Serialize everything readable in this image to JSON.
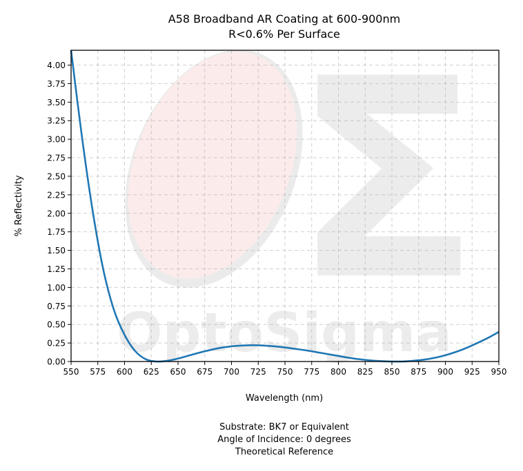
{
  "chart_data": {
    "type": "line",
    "title": "A58 Broadband AR Coating at 600-900nm",
    "subtitle": "R<0.6% Per Surface",
    "xlabel": "Wavelength (nm)",
    "ylabel": "% Reflectivity",
    "xlim": [
      550,
      950
    ],
    "ylim": [
      0,
      4.2
    ],
    "xticks": [
      550,
      575,
      600,
      625,
      650,
      675,
      700,
      725,
      750,
      775,
      800,
      825,
      850,
      875,
      900,
      925,
      950
    ],
    "yticks": [
      0.0,
      0.25,
      0.5,
      0.75,
      1.0,
      1.25,
      1.5,
      1.75,
      2.0,
      2.25,
      2.5,
      2.75,
      3.0,
      3.25,
      3.5,
      3.75,
      4.0
    ],
    "grid": true,
    "series": [
      {
        "color": "#1f77b4",
        "x": [
          550,
          560,
          570,
          580,
          590,
          600,
          610,
          620,
          630,
          640,
          650,
          660,
          670,
          680,
          690,
          700,
          710,
          720,
          730,
          740,
          750,
          760,
          770,
          780,
          790,
          800,
          810,
          820,
          830,
          840,
          850,
          860,
          870,
          880,
          890,
          900,
          910,
          920,
          930,
          940,
          950
        ],
        "y": [
          4.2,
          3.05,
          2.05,
          1.25,
          0.7,
          0.36,
          0.14,
          0.03,
          0.0,
          0.01,
          0.04,
          0.08,
          0.12,
          0.155,
          0.185,
          0.205,
          0.215,
          0.22,
          0.215,
          0.205,
          0.19,
          0.17,
          0.15,
          0.125,
          0.1,
          0.075,
          0.05,
          0.03,
          0.015,
          0.005,
          0.0,
          0.0,
          0.01,
          0.025,
          0.05,
          0.085,
          0.13,
          0.185,
          0.25,
          0.32,
          0.4
        ]
      }
    ]
  },
  "watermark": {
    "text": "OptoSigma",
    "symbol": "Σ"
  },
  "footer": {
    "substrate": "Substrate: BK7 or Equivalent",
    "angle": "Angle of Incidence: 0 degrees",
    "reference": "Theoretical Reference"
  }
}
